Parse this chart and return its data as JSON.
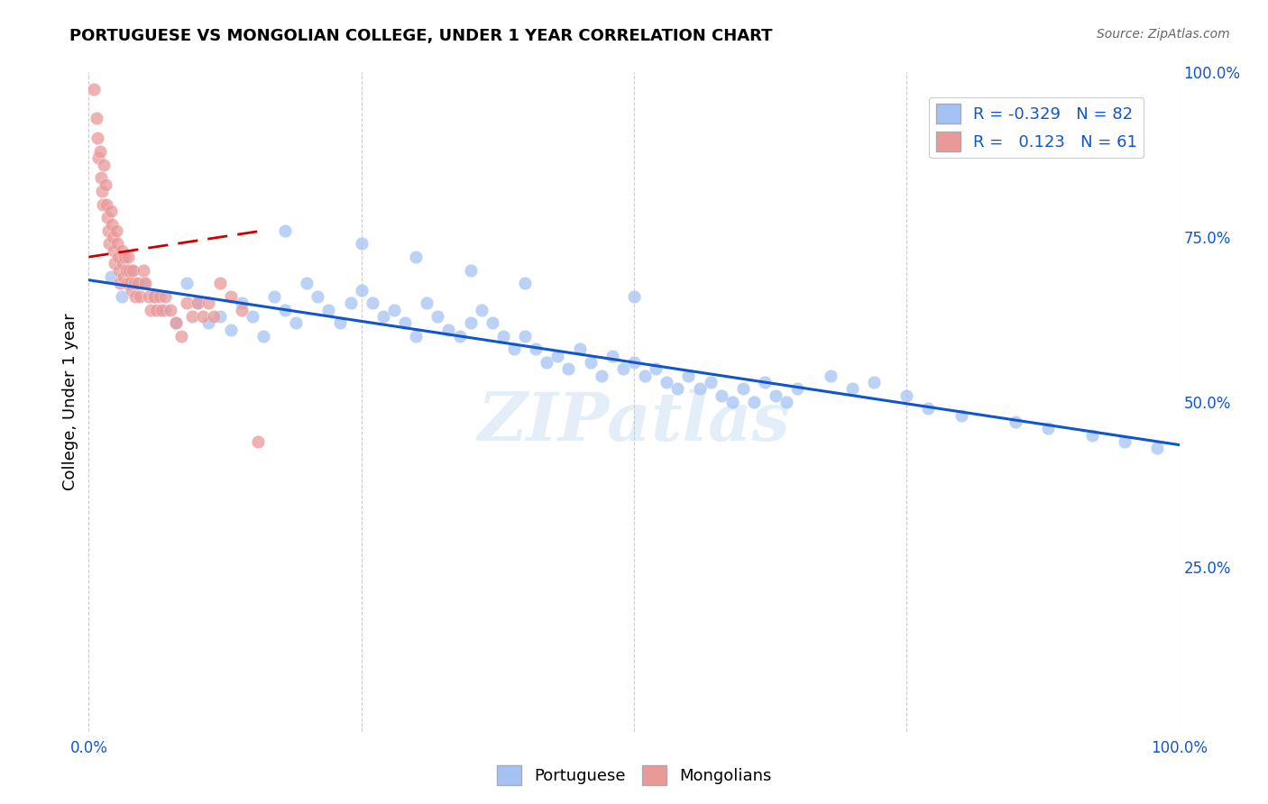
{
  "title": "PORTUGUESE VS MONGOLIAN COLLEGE, UNDER 1 YEAR CORRELATION CHART",
  "source": "Source: ZipAtlas.com",
  "ylabel": "College, Under 1 year",
  "watermark": "ZIPatlas",
  "legend_R_blue": "-0.329",
  "legend_N_blue": "82",
  "legend_R_pink": "0.123",
  "legend_N_pink": "61",
  "blue_color": "#a4c2f4",
  "pink_color": "#ea9999",
  "blue_line_color": "#1155cc",
  "pink_line_color": "#cc0000",
  "grid_color": "#cccccc",
  "background_color": "#ffffff",
  "portuguese_x": [
    0.02,
    0.03,
    0.03,
    0.04,
    0.05,
    0.06,
    0.07,
    0.08,
    0.09,
    0.1,
    0.11,
    0.12,
    0.13,
    0.14,
    0.15,
    0.16,
    0.17,
    0.18,
    0.19,
    0.2,
    0.21,
    0.22,
    0.23,
    0.24,
    0.25,
    0.26,
    0.27,
    0.28,
    0.29,
    0.3,
    0.31,
    0.32,
    0.33,
    0.34,
    0.35,
    0.36,
    0.37,
    0.38,
    0.39,
    0.4,
    0.41,
    0.42,
    0.43,
    0.44,
    0.45,
    0.46,
    0.47,
    0.48,
    0.49,
    0.5,
    0.51,
    0.52,
    0.53,
    0.54,
    0.55,
    0.56,
    0.57,
    0.58,
    0.59,
    0.6,
    0.61,
    0.62,
    0.63,
    0.64,
    0.65,
    0.68,
    0.7,
    0.72,
    0.75,
    0.77,
    0.8,
    0.85,
    0.88,
    0.92,
    0.95,
    0.98,
    0.18,
    0.25,
    0.3,
    0.35,
    0.4,
    0.5
  ],
  "portuguese_y": [
    0.69,
    0.66,
    0.72,
    0.7,
    0.68,
    0.66,
    0.64,
    0.62,
    0.68,
    0.65,
    0.62,
    0.63,
    0.61,
    0.65,
    0.63,
    0.6,
    0.66,
    0.64,
    0.62,
    0.68,
    0.66,
    0.64,
    0.62,
    0.65,
    0.67,
    0.65,
    0.63,
    0.64,
    0.62,
    0.6,
    0.65,
    0.63,
    0.61,
    0.6,
    0.62,
    0.64,
    0.62,
    0.6,
    0.58,
    0.6,
    0.58,
    0.56,
    0.57,
    0.55,
    0.58,
    0.56,
    0.54,
    0.57,
    0.55,
    0.56,
    0.54,
    0.55,
    0.53,
    0.52,
    0.54,
    0.52,
    0.53,
    0.51,
    0.5,
    0.52,
    0.5,
    0.53,
    0.51,
    0.5,
    0.52,
    0.54,
    0.52,
    0.53,
    0.51,
    0.49,
    0.48,
    0.47,
    0.46,
    0.45,
    0.44,
    0.43,
    0.76,
    0.74,
    0.72,
    0.7,
    0.68,
    0.66
  ],
  "mongolian_x": [
    0.005,
    0.007,
    0.008,
    0.009,
    0.01,
    0.011,
    0.012,
    0.013,
    0.014,
    0.015,
    0.016,
    0.017,
    0.018,
    0.019,
    0.02,
    0.021,
    0.022,
    0.023,
    0.024,
    0.025,
    0.026,
    0.027,
    0.028,
    0.029,
    0.03,
    0.031,
    0.032,
    0.033,
    0.034,
    0.035,
    0.036,
    0.037,
    0.038,
    0.039,
    0.04,
    0.042,
    0.043,
    0.045,
    0.047,
    0.05,
    0.052,
    0.055,
    0.057,
    0.06,
    0.062,
    0.065,
    0.067,
    0.07,
    0.075,
    0.08,
    0.085,
    0.09,
    0.095,
    0.1,
    0.105,
    0.11,
    0.115,
    0.12,
    0.13,
    0.14,
    0.155
  ],
  "mongolian_y": [
    0.975,
    0.93,
    0.9,
    0.87,
    0.88,
    0.84,
    0.82,
    0.8,
    0.86,
    0.83,
    0.8,
    0.78,
    0.76,
    0.74,
    0.79,
    0.77,
    0.75,
    0.73,
    0.71,
    0.76,
    0.74,
    0.72,
    0.7,
    0.68,
    0.73,
    0.71,
    0.69,
    0.72,
    0.7,
    0.68,
    0.72,
    0.7,
    0.68,
    0.67,
    0.7,
    0.68,
    0.66,
    0.68,
    0.66,
    0.7,
    0.68,
    0.66,
    0.64,
    0.66,
    0.64,
    0.66,
    0.64,
    0.66,
    0.64,
    0.62,
    0.6,
    0.65,
    0.63,
    0.65,
    0.63,
    0.65,
    0.63,
    0.68,
    0.66,
    0.64,
    0.44
  ],
  "blue_line_x": [
    0.0,
    1.0
  ],
  "blue_line_y": [
    0.685,
    0.435
  ],
  "pink_line_x": [
    0.0,
    0.16
  ],
  "pink_line_y": [
    0.72,
    0.76
  ],
  "xlim": [
    0.0,
    1.0
  ],
  "ylim": [
    0.0,
    1.0
  ]
}
